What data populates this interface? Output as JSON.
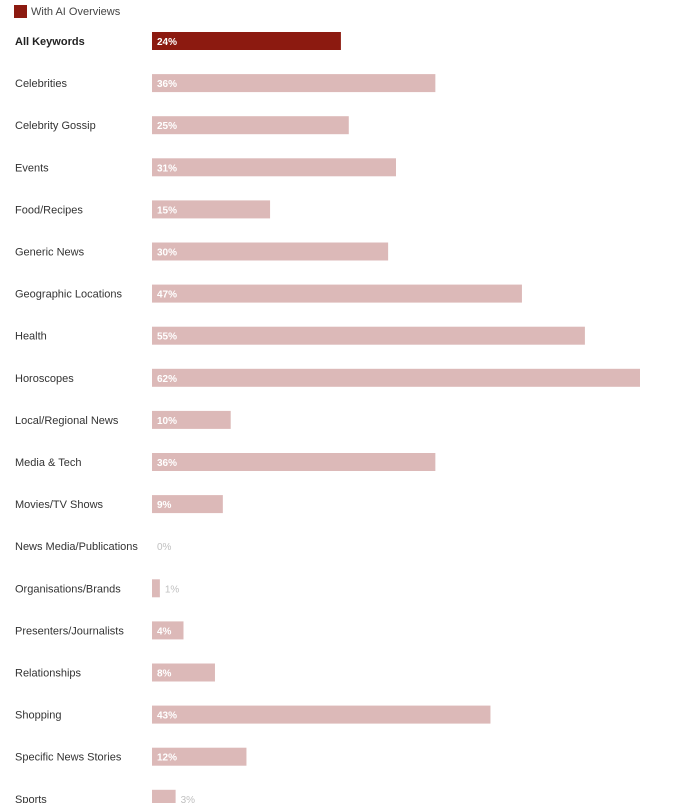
{
  "legend": {
    "label": "With AI Overviews",
    "color": "#8c1a10"
  },
  "colors": {
    "highlight": "#8c1a10",
    "normal": "#dcb9b8"
  },
  "chart_data": {
    "type": "bar",
    "orientation": "horizontal",
    "series": [
      {
        "name": "With AI Overviews"
      }
    ],
    "categories": [
      "All Keywords",
      "Celebrities",
      "Celebrity Gossip",
      "Events",
      "Food/Recipes",
      "Generic News",
      "Geographic Locations",
      "Health",
      "Horoscopes",
      "Local/Regional News",
      "Media & Tech",
      "Movies/TV Shows",
      "News Media/Publications",
      "Organisations/Brands",
      "Presenters/Journalists",
      "Relationships",
      "Shopping",
      "Specific News Stories",
      "Sports"
    ],
    "values": [
      24,
      36,
      25,
      31,
      15,
      30,
      47,
      55,
      62,
      10,
      36,
      9,
      0,
      1,
      4,
      8,
      43,
      12,
      3
    ],
    "labels": [
      "24%",
      "36%",
      "25%",
      "31%",
      "15%",
      "30%",
      "47%",
      "55%",
      "62%",
      "10%",
      "36%",
      "9%",
      "0%",
      "1%",
      "4%",
      "8%",
      "43%",
      "12%",
      "3%"
    ],
    "highlight_index": 0,
    "xlim": [
      0,
      62
    ],
    "legend_position": "top-left",
    "grid": false
  }
}
